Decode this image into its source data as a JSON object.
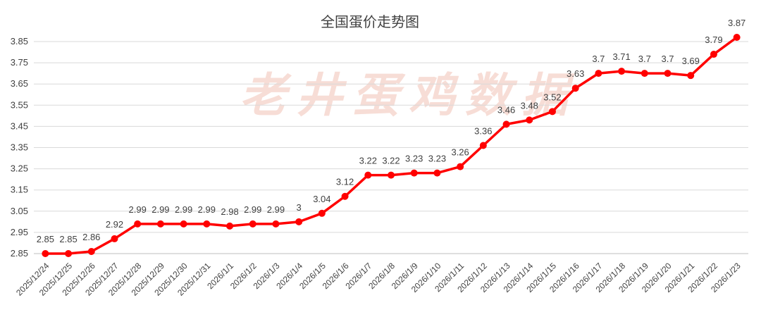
{
  "watermark": "老井蛋鸡数据",
  "colors": {
    "series": "#ff0000",
    "grid": "#d9d9d9",
    "text": "#404040",
    "watermark": "#f6d8d0"
  },
  "chart_data": {
    "type": "line",
    "title": "全国蛋价走势图",
    "xlabel": "",
    "ylabel": "",
    "ylim": [
      2.85,
      3.85
    ],
    "yticks": [
      "2.85",
      "2.95",
      "3.05",
      "3.15",
      "3.25",
      "3.35",
      "3.45",
      "3.55",
      "3.65",
      "3.75",
      "3.85"
    ],
    "grid": true,
    "legend": "none",
    "categories": [
      "2025/12/24",
      "2025/12/25",
      "2025/12/26",
      "2025/12/27",
      "2025/12/28",
      "2025/12/29",
      "2025/12/30",
      "2025/12/31",
      "2026/1/1",
      "2026/1/2",
      "2026/1/3",
      "2026/1/4",
      "2026/1/5",
      "2026/1/6",
      "2026/1/7",
      "2026/1/8",
      "2026/1/9",
      "2026/1/10",
      "2026/1/11",
      "2026/1/12",
      "2026/1/13",
      "2026/1/14",
      "2026/1/15",
      "2026/1/16",
      "2026/1/17",
      "2026/1/18",
      "2026/1/19",
      "2026/1/20",
      "2026/1/21",
      "2026/1/22",
      "2026/1/23"
    ],
    "series": [
      {
        "name": "",
        "values": [
          2.85,
          2.85,
          2.86,
          2.92,
          2.99,
          2.99,
          2.99,
          2.99,
          2.98,
          2.99,
          2.99,
          3,
          3.04,
          3.12,
          3.22,
          3.22,
          3.23,
          3.23,
          3.26,
          3.36,
          3.46,
          3.48,
          3.52,
          3.63,
          3.7,
          3.71,
          3.7,
          3.7,
          3.69,
          3.79,
          3.87
        ],
        "labels": [
          "2.85",
          "2.85",
          "2.86",
          "2.92",
          "2.99",
          "2.99",
          "2.99",
          "2.99",
          "2.98",
          "2.99",
          "2.99",
          "3",
          "3.04",
          "3.12",
          "3.22",
          "3.22",
          "3.23",
          "3.23",
          "3.26",
          "3.36",
          "3.46",
          "3.48",
          "3.52",
          "3.63",
          "3.7",
          "3.71",
          "3.7",
          "3.7",
          "3.69",
          "3.79",
          "3.87"
        ]
      }
    ]
  }
}
